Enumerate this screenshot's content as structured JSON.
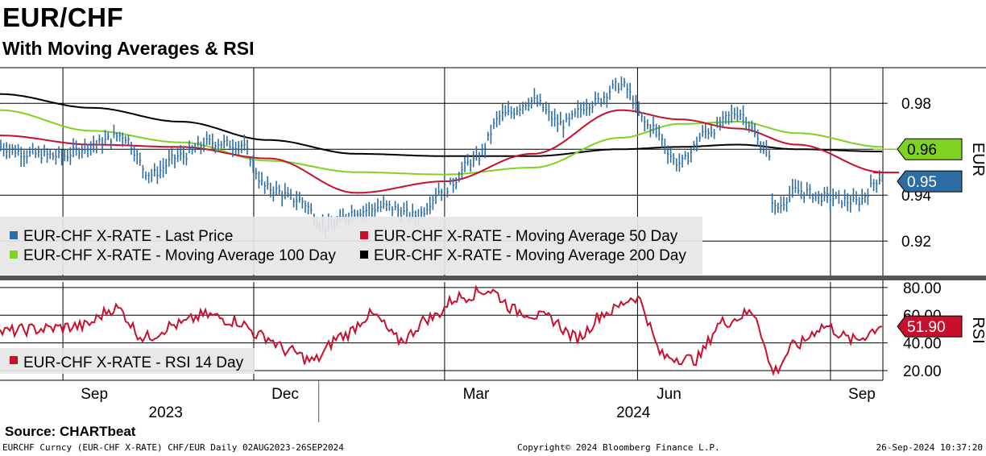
{
  "title": "EUR/CHF",
  "subtitle": "With Moving Averages & RSI",
  "source": "Source: CHARTbeat",
  "footer": {
    "left": "EURCHF Curncy (EUR-CHF X-RATE) CHF/EUR  Daily 02AUG2023-26SEP2024",
    "center": "Copyright© 2024 Bloomberg Finance L.P.",
    "right": "26-Sep-2024 10:37:20"
  },
  "colors": {
    "price": "#2e6da4",
    "ma50": "#c8102e",
    "ma100": "#7ed321",
    "ma200": "#000000",
    "rsi": "#c8102e",
    "grid": "#000000",
    "separator": "#555555"
  },
  "chart_data": [
    {
      "type": "line",
      "name": "price-panel",
      "ylabel": "EUR",
      "ylim": [
        0.905,
        0.9955
      ],
      "yticks": [
        0.92,
        0.94,
        0.96,
        0.98
      ],
      "ytick_labels": [
        "0.92",
        "0.94",
        "0.96",
        "0.98"
      ],
      "x_start": "2023-08-02",
      "x_end": "2024-09-26",
      "month_labels": [
        {
          "label": "Sep",
          "date": "2023-09-16"
        },
        {
          "label": "Dec",
          "date": "2023-12-16"
        },
        {
          "label": "Mar",
          "date": "2024-03-16"
        },
        {
          "label": "Jun",
          "date": "2024-06-16"
        },
        {
          "label": "Sep",
          "date": "2024-09-16"
        }
      ],
      "year_labels": [
        {
          "label": "2023",
          "date": "2023-10-20"
        },
        {
          "label": "2024",
          "date": "2024-05-30"
        }
      ],
      "year_divider": "2024-01-01",
      "gridline_dates": [
        "2023-09-01",
        "2023-12-01",
        "2024-03-01",
        "2024-06-01",
        "2024-09-01"
      ],
      "series": [
        {
          "name": "EUR-CHF X-RATE - Last Price",
          "style": "bar",
          "x": [
            "2023-08-02",
            "2023-08-16",
            "2023-08-31",
            "2023-09-15",
            "2023-09-29",
            "2023-10-13",
            "2023-10-27",
            "2023-11-10",
            "2023-11-24",
            "2023-12-08",
            "2023-12-22",
            "2024-01-05",
            "2024-01-19",
            "2024-02-02",
            "2024-02-16",
            "2024-03-01",
            "2024-03-15",
            "2024-03-29",
            "2024-04-12",
            "2024-04-26",
            "2024-05-10",
            "2024-05-24",
            "2024-06-07",
            "2024-06-21",
            "2024-07-05",
            "2024-07-19",
            "2024-08-02",
            "2024-08-05",
            "2024-08-16",
            "2024-08-30",
            "2024-09-13",
            "2024-09-26"
          ],
          "values": [
            0.961,
            0.958,
            0.957,
            0.962,
            0.966,
            0.949,
            0.957,
            0.963,
            0.962,
            0.943,
            0.938,
            0.926,
            0.933,
            0.935,
            0.931,
            0.943,
            0.955,
            0.975,
            0.981,
            0.971,
            0.98,
            0.988,
            0.97,
            0.954,
            0.968,
            0.976,
            0.96,
            0.934,
            0.942,
            0.939,
            0.937,
            0.948
          ]
        },
        {
          "name": "EUR-CHF X-RATE - Moving Average 50 Day",
          "style": "line",
          "x": [
            "2023-08-02",
            "2023-09-15",
            "2023-10-27",
            "2023-12-08",
            "2024-01-19",
            "2024-03-01",
            "2024-04-12",
            "2024-05-24",
            "2024-06-21",
            "2024-07-19",
            "2024-08-16",
            "2024-09-26"
          ],
          "values": [
            0.966,
            0.962,
            0.961,
            0.956,
            0.941,
            0.946,
            0.958,
            0.977,
            0.973,
            0.969,
            0.962,
            0.95
          ]
        },
        {
          "name": "EUR-CHF X-RATE - Moving Average 100 Day",
          "style": "line",
          "x": [
            "2023-08-02",
            "2023-09-15",
            "2023-10-27",
            "2023-12-08",
            "2024-01-19",
            "2024-03-01",
            "2024-04-12",
            "2024-05-24",
            "2024-06-21",
            "2024-07-19",
            "2024-08-16",
            "2024-09-26"
          ],
          "values": [
            0.977,
            0.968,
            0.963,
            0.955,
            0.95,
            0.949,
            0.952,
            0.965,
            0.971,
            0.972,
            0.967,
            0.961
          ]
        },
        {
          "name": "EUR-CHF X-RATE - Moving Average 200 Day",
          "style": "line",
          "x": [
            "2023-08-02",
            "2023-09-15",
            "2023-10-27",
            "2023-12-08",
            "2024-01-19",
            "2024-03-01",
            "2024-04-12",
            "2024-05-24",
            "2024-06-21",
            "2024-07-19",
            "2024-08-16",
            "2024-09-26"
          ],
          "values": [
            0.984,
            0.978,
            0.972,
            0.964,
            0.958,
            0.957,
            0.957,
            0.96,
            0.961,
            0.962,
            0.96,
            0.959
          ]
        }
      ],
      "last_value_labels": [
        {
          "series": "EUR-CHF X-RATE - Moving Average 100 Day",
          "text": "0.96",
          "value": 0.96
        },
        {
          "series": "EUR-CHF X-RATE - Last Price",
          "text": "0.95",
          "value": 0.946
        }
      ]
    },
    {
      "type": "line",
      "name": "rsi-panel",
      "ylabel": "RSI",
      "ylim": [
        13,
        84
      ],
      "yticks": [
        20,
        40,
        60,
        80
      ],
      "ytick_labels": [
        "20.00",
        "40.00",
        "60.00",
        "80.00"
      ],
      "series": [
        {
          "name": "EUR-CHF X-RATE - RSI 14 Day",
          "x": [
            "2023-08-02",
            "2023-08-20",
            "2023-09-10",
            "2023-09-26",
            "2023-10-10",
            "2023-10-25",
            "2023-11-08",
            "2023-11-22",
            "2023-12-05",
            "2023-12-18",
            "2023-12-29",
            "2024-01-12",
            "2024-01-26",
            "2024-02-09",
            "2024-02-23",
            "2024-03-08",
            "2024-03-22",
            "2024-04-05",
            "2024-04-19",
            "2024-05-03",
            "2024-05-17",
            "2024-05-31",
            "2024-06-14",
            "2024-06-28",
            "2024-07-12",
            "2024-07-26",
            "2024-08-05",
            "2024-08-15",
            "2024-08-29",
            "2024-09-12",
            "2024-09-26"
          ],
          "values": [
            48,
            50,
            52,
            65,
            44,
            53,
            60,
            56,
            45,
            34,
            27,
            45,
            60,
            42,
            58,
            73,
            78,
            63,
            58,
            44,
            62,
            73,
            30,
            28,
            55,
            62,
            20,
            38,
            52,
            42,
            51.9
          ]
        }
      ],
      "last_value_labels": [
        {
          "series": "EUR-CHF X-RATE - RSI 14 Day",
          "text": "51.90",
          "value": 51.9
        }
      ]
    }
  ]
}
